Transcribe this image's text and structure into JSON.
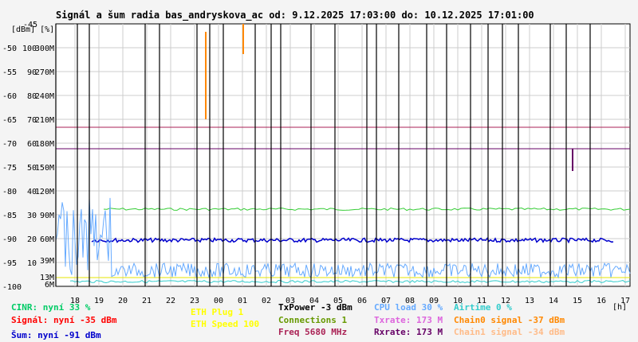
{
  "chart_data": {
    "type": "line",
    "title": "Signál a šum radia bas_andryskova_ac od: 9.12.2025 17:03:00 do: 10.12.2025 17:01:00",
    "top_label": "-45",
    "unit_labels": "[dBm] [%]",
    "y_ticks_dbm": [
      "-50",
      "-55",
      "-60",
      "-65",
      "-70",
      "-75",
      "-80",
      "-85",
      "-90",
      "-95",
      "-100"
    ],
    "y_ticks_pct": [
      "100",
      "90",
      "80",
      "70",
      "60",
      "50",
      "40",
      "30",
      "20",
      "10"
    ],
    "y_ticks_rate": [
      "300M",
      "270M",
      "240M",
      "210M",
      "180M",
      "150M",
      "120M",
      "90M",
      "60M"
    ],
    "y_ticks_rate_small": [
      "39M",
      "13M",
      "6M"
    ],
    "ylim_dbm": [
      -100,
      -45
    ],
    "x_ticks": [
      "18",
      "19",
      "20",
      "21",
      "22",
      "23",
      "00",
      "01",
      "02",
      "03",
      "04",
      "05",
      "06",
      "07",
      "08",
      "09",
      "10",
      "11",
      "12",
      "13",
      "14",
      "15",
      "16",
      "17"
    ],
    "x_unit": "[h]",
    "series": [
      {
        "name": "CINR",
        "color": "#00cc66",
        "values": [
          33
        ]
      },
      {
        "name": "Signál",
        "color": "#ff0000",
        "values": [
          -35
        ]
      },
      {
        "name": "Šum",
        "color": "#0000cc",
        "values": [
          -91
        ]
      },
      {
        "name": "ETH Plug",
        "color": "#ffff00",
        "values": [
          1
        ]
      },
      {
        "name": "ETH Speed",
        "color": "#ffff00",
        "values": [
          100
        ]
      },
      {
        "name": "TxPower",
        "color": "#000000",
        "values": [
          -3
        ]
      },
      {
        "name": "Connections",
        "color": "#669900",
        "values": [
          1
        ]
      },
      {
        "name": "Freq",
        "color": "#aa2255",
        "values": [
          5680
        ]
      },
      {
        "name": "CPU load",
        "color": "#66aaff",
        "values": [
          30
        ]
      },
      {
        "name": "Txrate",
        "color": "#dd66dd",
        "values": [
          173
        ]
      },
      {
        "name": "Rxrate",
        "color": "#660066",
        "values": [
          173
        ]
      },
      {
        "name": "Airtime",
        "color": "#33cccc",
        "values": [
          0
        ]
      },
      {
        "name": "Chain0 signal",
        "color": "#ff8800",
        "values": [
          -37
        ]
      },
      {
        "name": "Chain1 signal",
        "color": "#ffbb88",
        "values": [
          -34
        ]
      }
    ]
  },
  "legend": {
    "cinr": "CINR: nyní 33 %",
    "signal": "Signál: nyní -35 dBm",
    "sum": "Šum: nyní -91 dBm",
    "eth_plug": "ETH Plug 1",
    "eth_speed": "ETH Speed 100",
    "txpower": "TxPower -3 dBm",
    "connections": "Connections 1",
    "freq": "Freq 5680 MHz",
    "cpu": "CPU load 30 %",
    "txrate": "Txrate: 173 M",
    "rxrate": "Rxrate: 173 M",
    "airtime": "Airtime 0 %",
    "chain0": "Chain0 signal -37 dBm",
    "chain1": "Chain1 signal -34 dBm"
  },
  "colors": {
    "cinr": "#00cc66",
    "signal": "#ff0000",
    "sum": "#0000cc",
    "eth": "#ffff00",
    "txpower": "#000000",
    "connections": "#669900",
    "freq": "#aa2255",
    "cpu": "#66aaff",
    "txrate": "#dd66dd",
    "rxrate": "#660066",
    "airtime": "#33cccc",
    "chain0": "#ff8800",
    "chain1": "#ffbb88"
  }
}
